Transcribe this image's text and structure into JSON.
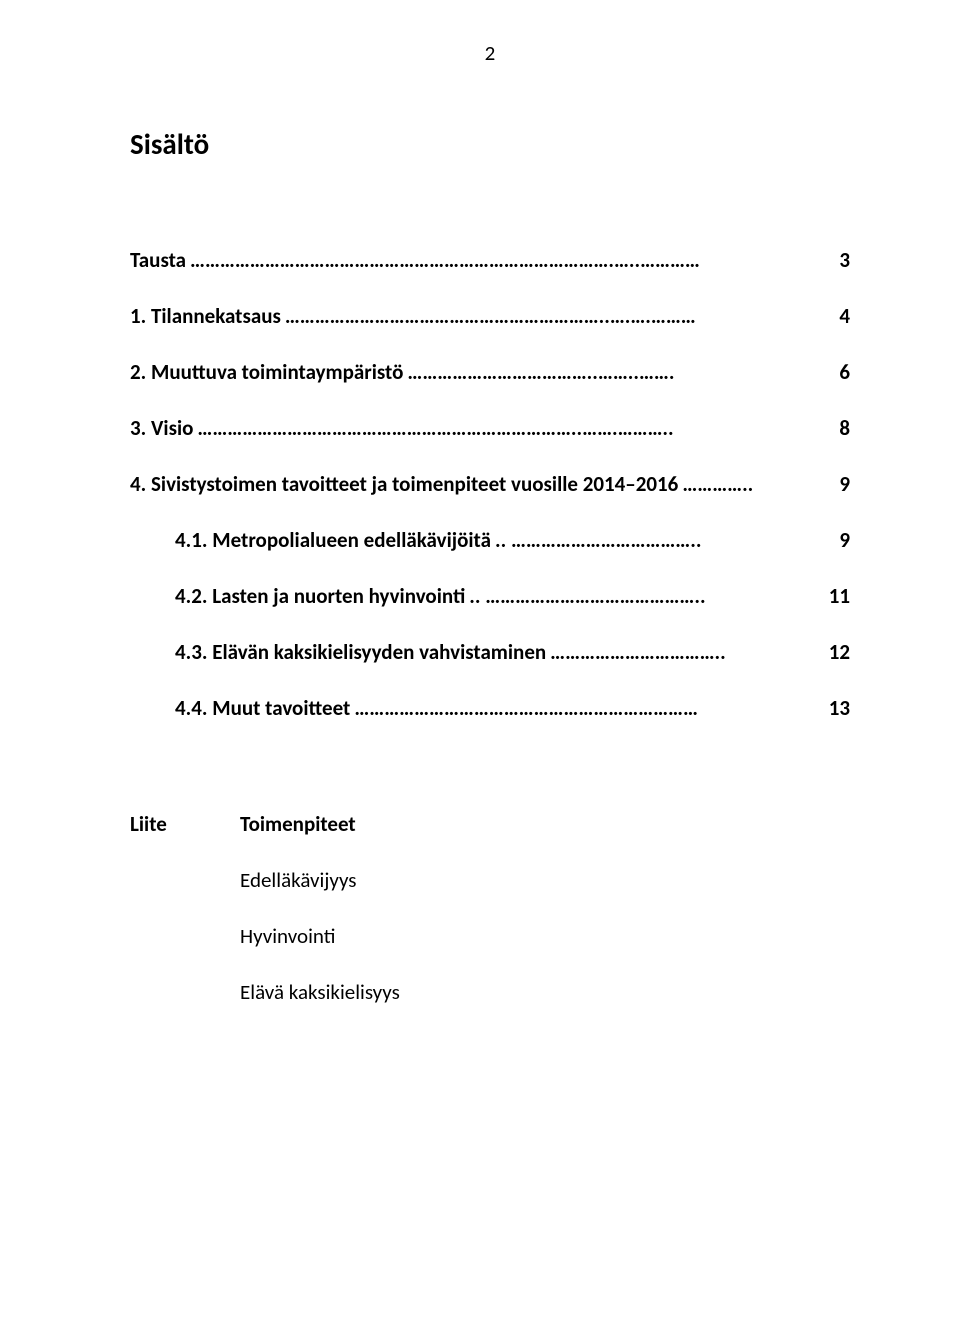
{
  "page_number": "2",
  "title": "Sisältö",
  "toc": [
    {
      "label": "Tausta",
      "dots": "………………………………………………………………………….…..…………",
      "page": "3",
      "sub": false
    },
    {
      "label": "1. Tilannekatsaus",
      "dots": "………………………………………………………..….….………",
      "page": "4",
      "sub": false
    },
    {
      "label": "2. Muuttuva toimintaympäristö",
      "dots": "………………………………..……..…….",
      "page": "6",
      "sub": false
    },
    {
      "label": "3. Visio",
      "dots": "…………………………………………………………………..…….………..",
      "page": "8",
      "sub": false
    },
    {
      "label": "4. Sivistystoimen tavoitteet ja toimenpiteet vuosille 2014–2016",
      "dots": "…………..",
      "page": "9",
      "sub": false
    },
    {
      "label": "4.1. Metropolialueen edelläkävijöitä",
      "dots": ".. ………………………………..",
      "page": "9",
      "sub": true
    },
    {
      "label": "4.2. Lasten ja nuorten hyvinvointi",
      "dots": ".. ……………………………………..",
      "page": "11",
      "sub": true
    },
    {
      "label": "4.3. Elävän kaksikielisyyden vahvistaminen",
      "dots": "……………………………..",
      "page": "12",
      "sub": true
    },
    {
      "label": "4.4. Muut tavoitteet",
      "dots": "……………………………………………………………",
      "page": "13",
      "sub": true
    }
  ],
  "appendix": {
    "label": "Liite",
    "heading": "Toimenpiteet",
    "items": [
      "Edelläkävijyys",
      "Hyvinvointi",
      "Elävä kaksikielisyys"
    ]
  }
}
